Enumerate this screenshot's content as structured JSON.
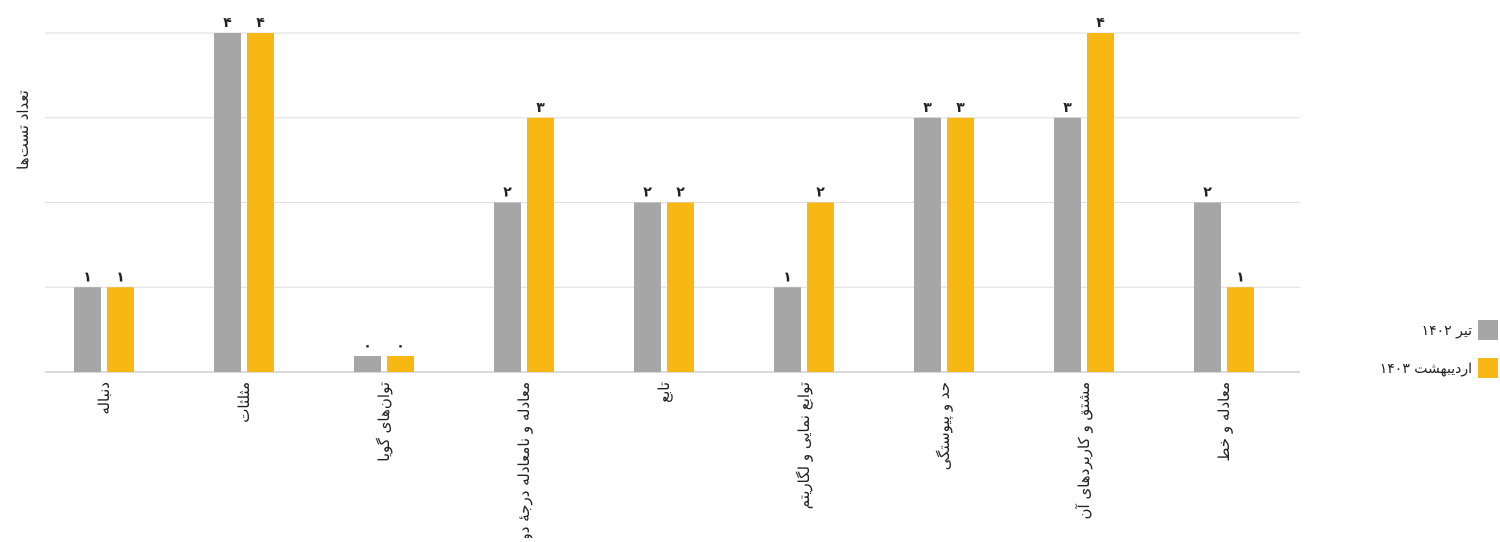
{
  "chart_data": {
    "type": "bar",
    "ylabel": "تعداد تست‌ها",
    "ylim": [
      0,
      4
    ],
    "grid": true,
    "legend_position": "right",
    "categories": [
      "دنباله",
      "مثلثات",
      "توان‌های گویا",
      "معادله و نامعادله درجهٔ دوم",
      "تابع",
      "توابع نمایی و لگاریتم",
      "حد و پیوستگی",
      "مشتق و کاربردهای آن",
      "معادله و خط"
    ],
    "series": [
      {
        "name": "تیر ۱۴۰۲",
        "color": "#a6a6a6",
        "values": [
          1,
          4,
          0,
          2,
          2,
          1,
          3,
          3,
          2
        ],
        "labels": [
          "۱",
          "۴",
          "۰",
          "۲",
          "۲",
          "۱",
          "۳",
          "۳",
          "۲"
        ]
      },
      {
        "name": "اردیبهشت ۱۴۰۳",
        "color": "#f8b814",
        "values": [
          1,
          4,
          0,
          3,
          2,
          2,
          3,
          4,
          1
        ],
        "labels": [
          "۱",
          "۴",
          "۰",
          "۳",
          "۲",
          "۲",
          "۳",
          "۴",
          "۱"
        ]
      }
    ]
  }
}
